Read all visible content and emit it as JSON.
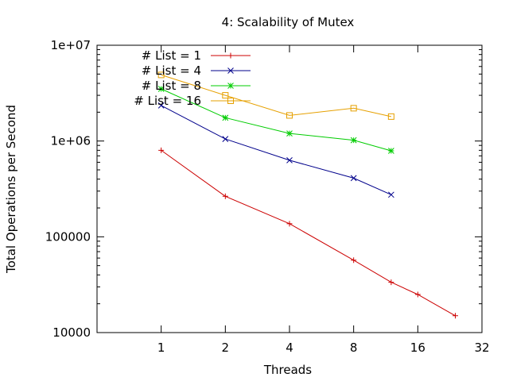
{
  "chart_data": {
    "type": "line",
    "title": "4: Scalability of Mutex",
    "xlabel": "Threads",
    "ylabel": "Total Operations per Second",
    "x_scale": "log2",
    "y_scale": "log10",
    "xlim": [
      0.5,
      32
    ],
    "ylim": [
      10000,
      10000000
    ],
    "x_ticks": [
      1,
      2,
      4,
      8,
      16,
      32
    ],
    "x_tick_labels": [
      "1",
      "2",
      "4",
      "8",
      "16",
      "32"
    ],
    "y_ticks": [
      10000,
      100000,
      1000000,
      10000000
    ],
    "y_tick_labels": [
      "10000",
      "100000",
      "1e+06",
      "1e+07"
    ],
    "grid": false,
    "legend_position": "top-left",
    "series": [
      {
        "name": "# List = 1",
        "color": "#cc0000",
        "marker": "plus",
        "x": [
          1,
          2,
          4,
          8,
          12,
          16,
          24
        ],
        "y": [
          800000,
          265000,
          137000,
          57000,
          33500,
          25000,
          15000
        ]
      },
      {
        "name": "# List = 4",
        "color": "#00008b",
        "marker": "cross",
        "x": [
          1,
          2,
          4,
          8,
          12
        ],
        "y": [
          2350000,
          1050000,
          630000,
          410000,
          275000
        ]
      },
      {
        "name": "# List = 8",
        "color": "#00cc00",
        "marker": "star",
        "x": [
          1,
          2,
          4,
          8,
          12
        ],
        "y": [
          3500000,
          1750000,
          1200000,
          1020000,
          790000
        ]
      },
      {
        "name": "# List = 16",
        "color": "#e6a000",
        "marker": "square",
        "x": [
          1,
          2,
          4,
          8,
          12
        ],
        "y": [
          4900000,
          3000000,
          1850000,
          2200000,
          1800000
        ]
      }
    ]
  }
}
